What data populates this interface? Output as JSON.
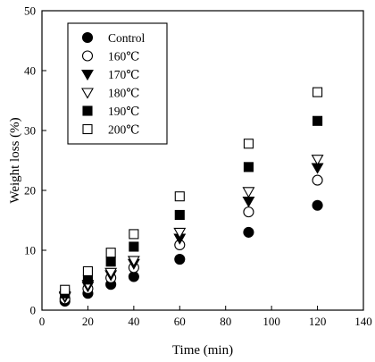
{
  "chart_data": {
    "type": "scatter",
    "xlabel": "Time (min)",
    "ylabel": "Weight loss (%)",
    "xlim": [
      0,
      140
    ],
    "ylim": [
      0,
      50
    ],
    "xticks": [
      0,
      20,
      40,
      60,
      80,
      100,
      120,
      140
    ],
    "yticks": [
      0,
      10,
      20,
      30,
      40,
      50
    ],
    "x": [
      10,
      20,
      30,
      40,
      60,
      90,
      120
    ],
    "grid": false,
    "legend_position": "top-left",
    "series": [
      {
        "name": "Control",
        "marker": "circle-filled",
        "values": [
          1.5,
          2.8,
          4.3,
          5.6,
          8.5,
          13.0,
          17.5
        ]
      },
      {
        "name": "160℃",
        "marker": "circle-open",
        "values": [
          1.9,
          3.6,
          5.4,
          7.1,
          10.9,
          16.4,
          21.7
        ]
      },
      {
        "name": "170℃",
        "marker": "triangle-down-filled",
        "values": [
          2.2,
          4.0,
          5.9,
          7.8,
          12.0,
          18.2,
          23.8
        ]
      },
      {
        "name": "180℃",
        "marker": "triangle-down-open",
        "values": [
          2.4,
          4.3,
          6.3,
          8.3,
          13.0,
          19.8,
          25.2
        ]
      },
      {
        "name": "190℃",
        "marker": "square-filled",
        "values": [
          2.8,
          5.1,
          8.1,
          10.6,
          15.9,
          23.9,
          31.6
        ]
      },
      {
        "name": "200℃",
        "marker": "square-open",
        "values": [
          3.4,
          6.5,
          9.6,
          12.7,
          19.0,
          27.8,
          36.4
        ]
      }
    ]
  }
}
